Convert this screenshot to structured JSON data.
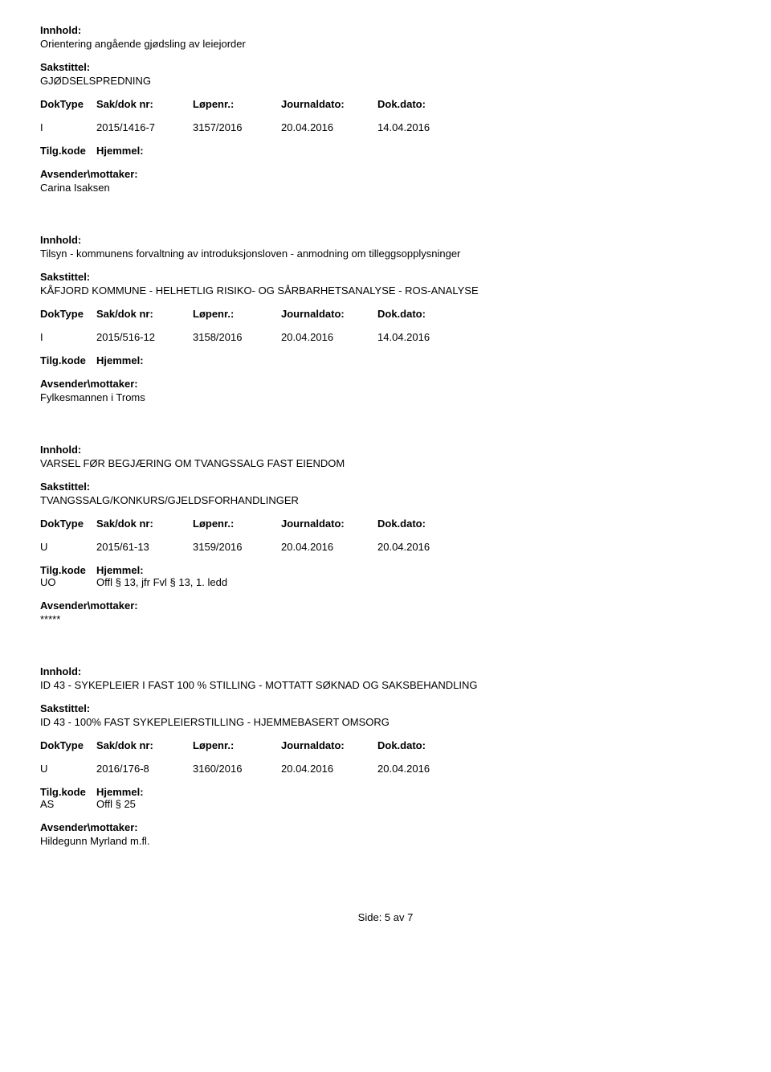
{
  "labels": {
    "innhold": "Innhold:",
    "sakstittel": "Sakstittel:",
    "doktype": "DokType",
    "sakdoknr": "Sak/dok nr:",
    "lopenr": "Løpenr.:",
    "journaldato": "Journaldato:",
    "dokdato": "Dok.dato:",
    "tilgkode": "Tilg.kode",
    "hjemmel": "Hjemmel:",
    "avsender": "Avsender\\mottaker:"
  },
  "entries": [
    {
      "innhold": "Orientering angående gjødsling av leiejorder",
      "sakstittel": "GJØDSELSPREDNING",
      "doktype": "I",
      "sakdoknr": "2015/1416-7",
      "lopenr": "3157/2016",
      "journaldato": "20.04.2016",
      "dokdato": "14.04.2016",
      "tilgkode": "",
      "hjemmel": "",
      "avsender": "Carina Isaksen"
    },
    {
      "innhold": "Tilsyn - kommunens forvaltning av introduksjonsloven - anmodning om tilleggsopplysninger",
      "sakstittel": "KÅFJORD KOMMUNE - HELHETLIG RISIKO- OG SÅRBARHETSANALYSE - ROS-ANALYSE",
      "doktype": "I",
      "sakdoknr": "2015/516-12",
      "lopenr": "3158/2016",
      "journaldato": "20.04.2016",
      "dokdato": "14.04.2016",
      "tilgkode": "",
      "hjemmel": "",
      "avsender": "Fylkesmannen i Troms"
    },
    {
      "innhold": "VARSEL FØR BEGJÆRING OM TVANGSSALG FAST EIENDOM",
      "sakstittel": "TVANGSSALG/KONKURS/GJELDSFORHANDLINGER",
      "doktype": "U",
      "sakdoknr": "2015/61-13",
      "lopenr": "3159/2016",
      "journaldato": "20.04.2016",
      "dokdato": "20.04.2016",
      "tilgkode": "UO",
      "hjemmel": "Offl § 13, jfr Fvl § 13, 1. ledd",
      "avsender": "*****"
    },
    {
      "innhold": "ID 43 - SYKEPLEIER I FAST 100 % STILLING - MOTTATT SØKNAD OG SAKSBEHANDLING",
      "sakstittel": "ID 43 - 100% FAST SYKEPLEIERSTILLING - HJEMMEBASERT OMSORG",
      "doktype": "U",
      "sakdoknr": "2016/176-8",
      "lopenr": "3160/2016",
      "journaldato": "20.04.2016",
      "dokdato": "20.04.2016",
      "tilgkode": "AS",
      "hjemmel": "Offl § 25",
      "avsender": "Hildegunn Myrland m.fl."
    }
  ],
  "footer": "Side: 5 av 7"
}
